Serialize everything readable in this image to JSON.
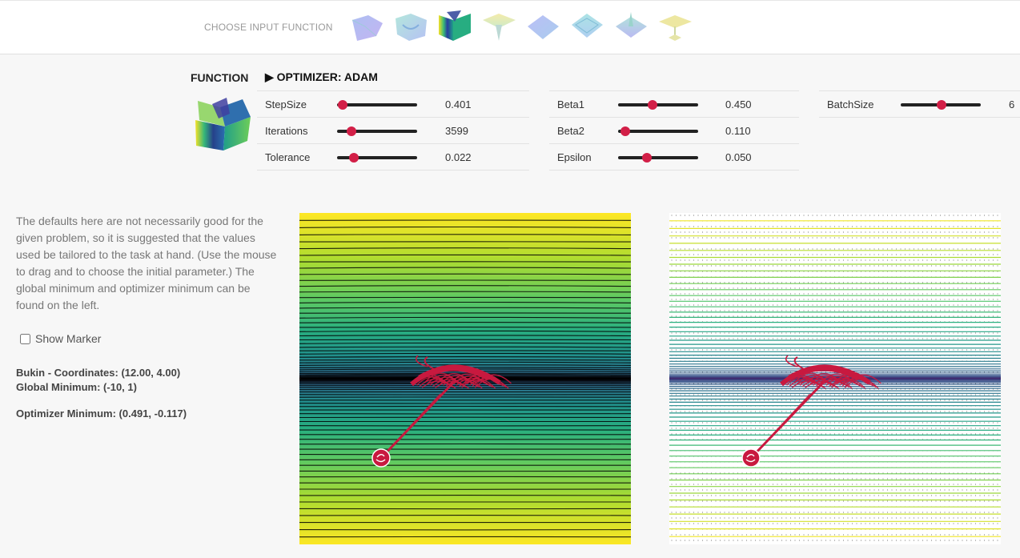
{
  "header": {
    "choose_label": "CHOOSE INPUT FUNCTION",
    "thumbnails": [
      "surface-1",
      "surface-2",
      "surface-3",
      "surface-4",
      "surface-5",
      "surface-6",
      "surface-7",
      "surface-8"
    ],
    "selected_index": 2
  },
  "function_panel": {
    "title": "FUNCTION"
  },
  "optimizer": {
    "title": "▶ OPTIMIZER: ADAM",
    "params": [
      {
        "label": "StepSize",
        "value": "0.401",
        "level": 0.07
      },
      {
        "label": "Iterations",
        "value": "3599",
        "level": 0.18
      },
      {
        "label": "Tolerance",
        "value": "0.022",
        "level": 0.21
      },
      {
        "label": "Beta1",
        "value": "0.450",
        "level": 0.43
      },
      {
        "label": "Beta2",
        "value": "0.110",
        "level": 0.09
      },
      {
        "label": "Epsilon",
        "value": "0.050",
        "level": 0.36
      },
      {
        "label": "BatchSize",
        "value": "6",
        "level": 0.51
      }
    ]
  },
  "description": "The defaults here are not necessarily good for the given problem, so it is suggested that the values used be tailored to the task at hand. (Use the mouse to drag and to choose the initial parameter.) The global minimum and optimizer minimum can be found on the left.",
  "show_marker": {
    "label": "Show Marker",
    "checked": false
  },
  "info": {
    "coordinates": "Bukin - Coordinates: (12.00, 4.00)",
    "global_min": "Global Minimum: (-10, 1)",
    "optimizer_min": "Optimizer Minimum: (0.491, -0.117)"
  },
  "colors": {
    "accent": "#d21f47",
    "path": "#c8193f"
  }
}
